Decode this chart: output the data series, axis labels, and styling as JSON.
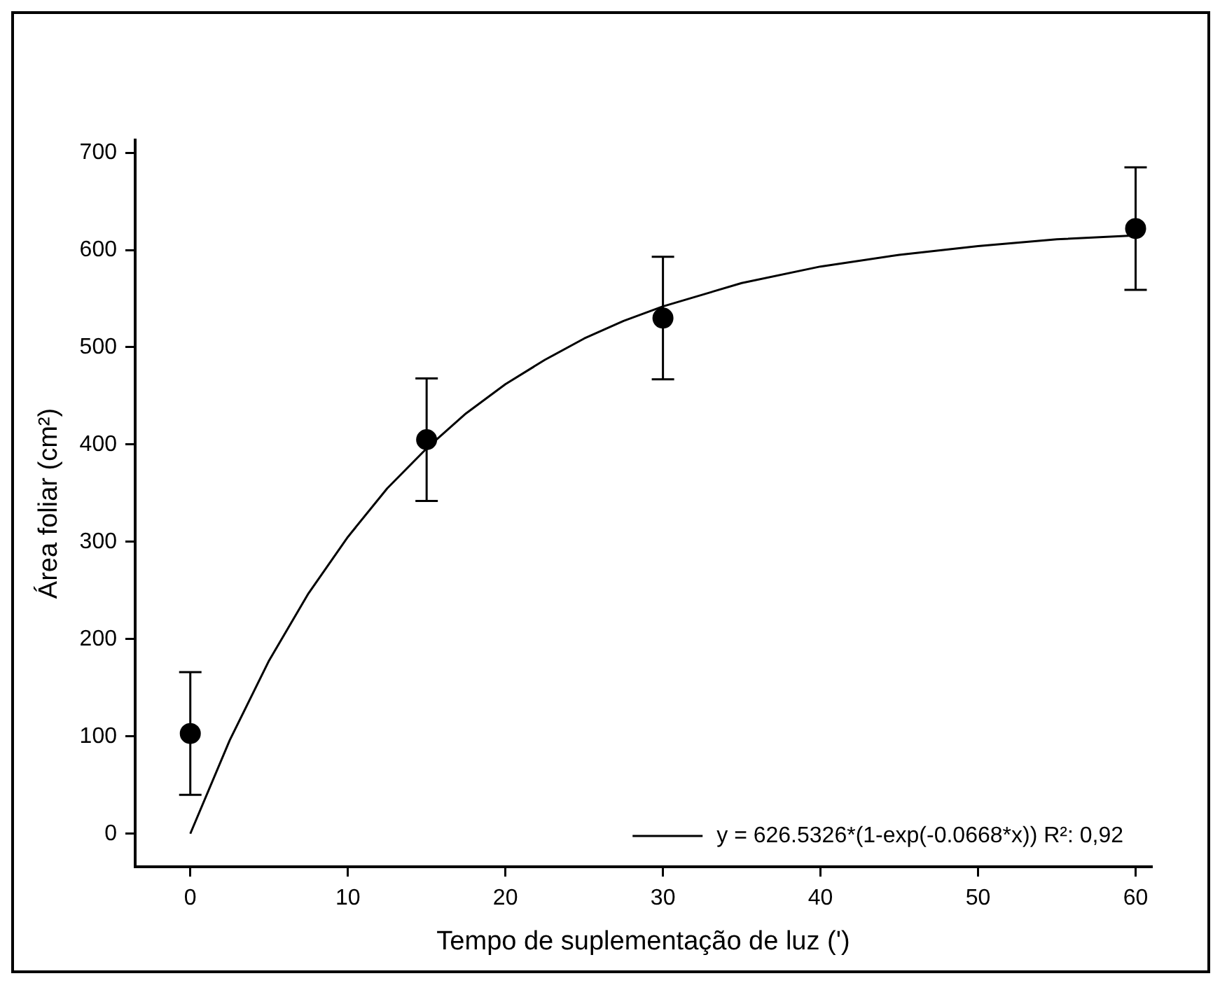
{
  "chart_data": {
    "type": "scatter",
    "xlabel": "Tempo de suplementação de luz (')",
    "ylabel": "Área foliar (cm²)",
    "xlim": [
      -3.5,
      61
    ],
    "ylim": [
      -34,
      713
    ],
    "xticks": [
      0,
      10,
      20,
      30,
      40,
      50,
      60
    ],
    "yticks": [
      0,
      100,
      200,
      300,
      400,
      500,
      600,
      700
    ],
    "grid": false,
    "legend": "bottom right",
    "marker": "circle",
    "series": [
      {
        "type": "scatter",
        "color": "#000000",
        "x": [
          0,
          15,
          30,
          60
        ],
        "values": [
          103,
          405,
          530,
          622
        ],
        "errors": [
          63,
          63,
          63,
          63
        ]
      },
      {
        "type": "line",
        "name": "y = 626.5326*(1-exp(-0.0668*x)) R²: 0,92",
        "color": "#000000",
        "line_style": "solid",
        "marker": "none",
        "x": [
          0,
          2.5,
          5,
          7.5,
          10,
          12.5,
          15,
          17.5,
          20,
          22.5,
          25,
          27.5,
          30,
          35,
          40,
          45,
          50,
          55,
          60
        ],
        "values": [
          0,
          96,
          178,
          247,
          305,
          355,
          396,
          432,
          462,
          487,
          509,
          527,
          542,
          566,
          583,
          595,
          604,
          611,
          615
        ]
      }
    ]
  }
}
